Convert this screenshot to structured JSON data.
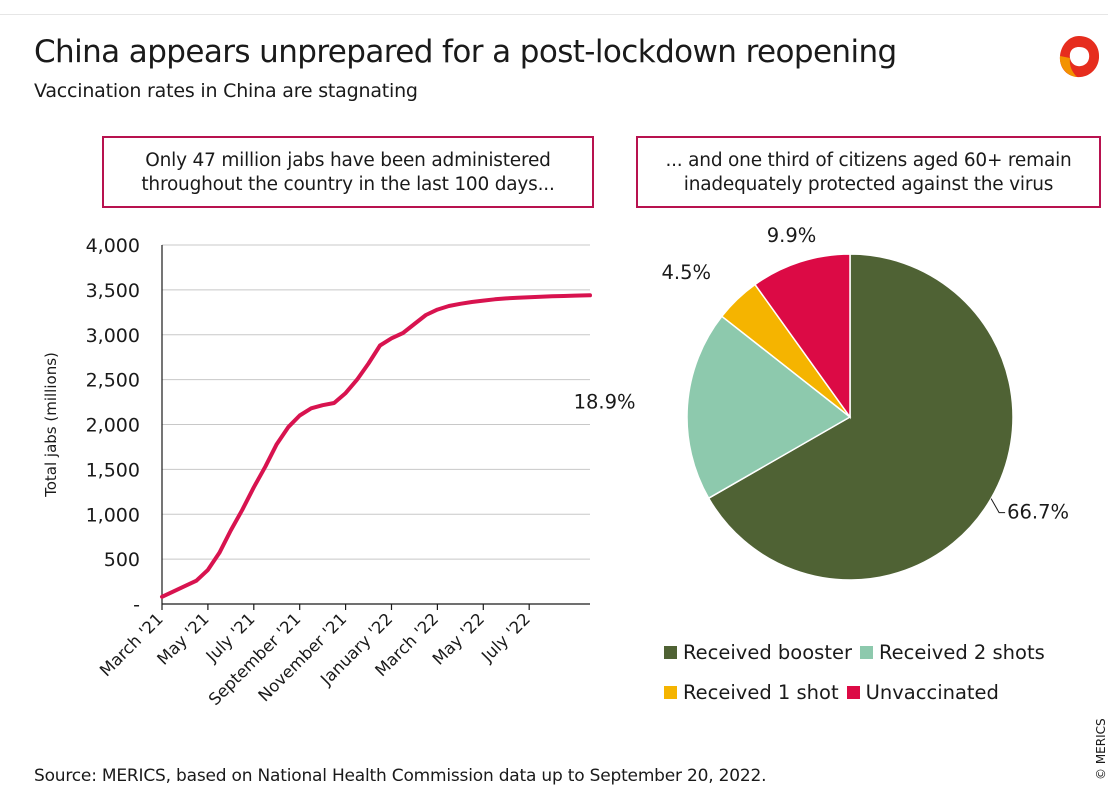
{
  "header": {
    "title": "China appears unprepared for a post-lockdown reopening",
    "subtitle": "Vaccination rates in China are stagnating"
  },
  "callouts": {
    "left_line1": "Only 47 million jabs have been administered",
    "left_line2": "throughout the country in the last 100 days...",
    "right_line1": "... and one third of citizens aged 60+ remain",
    "right_line2": "inadequately protected against the virus"
  },
  "footer": {
    "source": "Source: MERICS, based on National Health Commission data up to September 20, 2022.",
    "copyright": "© MERICS"
  },
  "colors": {
    "line": "#d8134f",
    "booster": "#4f6234",
    "two_shots": "#8dc9ad",
    "one_shot": "#f5b400",
    "unvaccinated": "#dc0a45",
    "callout_border": "#b8124f",
    "logo_red": "#e62d1e",
    "logo_orange": "#f39200"
  },
  "chart_data": [
    {
      "type": "line",
      "title": "",
      "ylabel": "Total jabs (millions)",
      "xlabel": "",
      "ylim": [
        0,
        4000
      ],
      "y_ticks": [
        0,
        500,
        1000,
        1500,
        2000,
        2500,
        3000,
        3500,
        4000
      ],
      "y_tick_labels": [
        "-",
        "500",
        "1,000",
        "1,500",
        "2,000",
        "2,500",
        "3,000",
        "3,500",
        "4,000"
      ],
      "x_tick_labels": [
        "March '21",
        "May '21",
        "July '21",
        "September '21",
        "November '21",
        "January '22",
        "March '22",
        "May '22",
        "July '22"
      ],
      "x_tick_months": [
        0,
        2,
        4,
        6,
        8,
        10,
        12,
        14,
        16
      ],
      "xlim_months": [
        0,
        18.65
      ],
      "series": [
        {
          "months": [
            0,
            0.5,
            1,
            1.5,
            2,
            2.5,
            3,
            3.5,
            4,
            4.5,
            5,
            5.5,
            6,
            6.5,
            7,
            7.5,
            8,
            8.5,
            9,
            9.5,
            10,
            10.5,
            11,
            11.5,
            12,
            12.5,
            13,
            13.5,
            14,
            14.5,
            15,
            15.5,
            16,
            16.5,
            17,
            17.5,
            18,
            18.65
          ],
          "values": [
            80,
            140,
            200,
            260,
            380,
            570,
            820,
            1050,
            1300,
            1530,
            1780,
            1970,
            2100,
            2180,
            2215,
            2240,
            2350,
            2500,
            2680,
            2880,
            2960,
            3020,
            3120,
            3220,
            3280,
            3320,
            3345,
            3365,
            3380,
            3395,
            3405,
            3412,
            3418,
            3423,
            3428,
            3432,
            3436,
            3440
          ]
        }
      ]
    },
    {
      "type": "pie",
      "title": "",
      "start": "12 o'clock",
      "direction": "clockwise",
      "categories": [
        "Received booster",
        "Received 2 shots",
        "Received 1 shot",
        "Unvaccinated"
      ],
      "values": [
        66.7,
        18.9,
        4.5,
        9.9
      ],
      "labels": [
        "66.7%",
        "18.9%",
        "4.5%",
        "9.9%"
      ],
      "legend": "bottom"
    }
  ]
}
